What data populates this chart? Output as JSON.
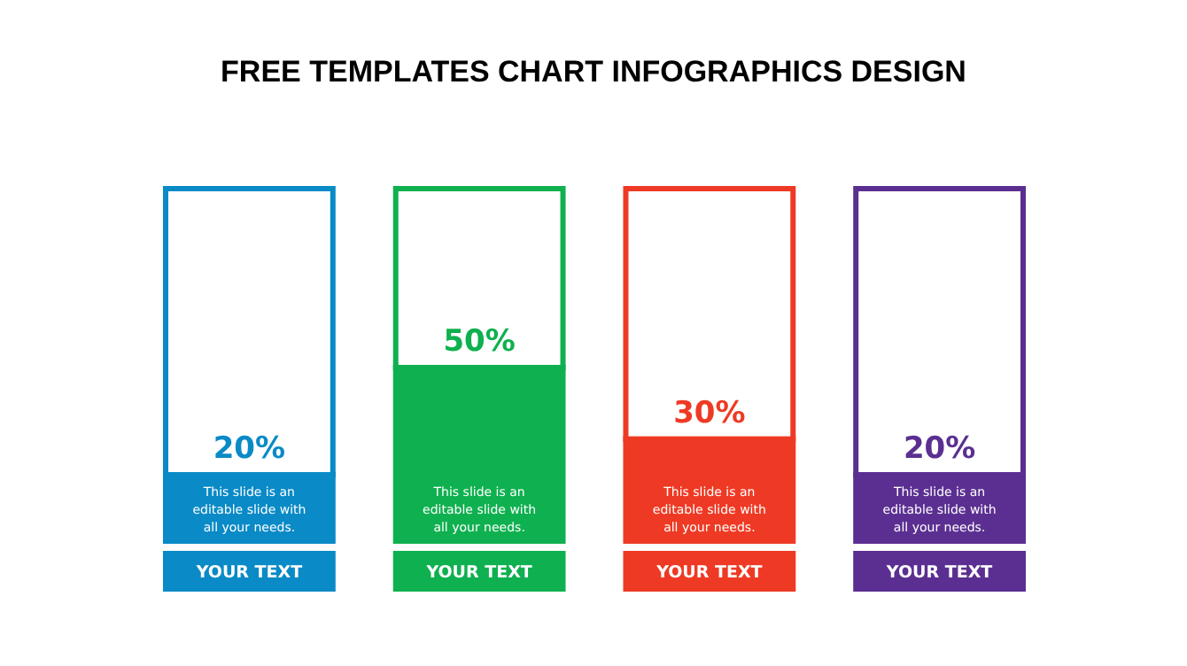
{
  "chart_data": {
    "type": "bar",
    "title": "FREE TEMPLATES CHART INFOGRAPHICS DESIGN",
    "categories": [
      "YOUR TEXT",
      "YOUR TEXT",
      "YOUR TEXT",
      "YOUR TEXT"
    ],
    "stacked": true,
    "series": [
      {
        "colors": [
          "#0a8ac6",
          "#0fb04f",
          "#ee3a24",
          "#5b2f91"
        ],
        "values": [
          20,
          50,
          30,
          20
        ],
        "value_labels": [
          "20%",
          "50%",
          "30%",
          "20%"
        ]
      },
      {
        "colors": [
          "#0a8ac6",
          "#0fb04f",
          "#ee3a24",
          "#5b2f91"
        ],
        "values": [
          80,
          50,
          70,
          80
        ]
      }
    ],
    "ylim": [
      0,
      100
    ],
    "tick_labels": false,
    "annotations": [
      "This slide is an editable slide with all your needs.",
      "This slide is an editable slide with all your needs.",
      "This slide is an editable slide with all your needs.",
      "This slide is an editable slide with all your needs."
    ]
  }
}
